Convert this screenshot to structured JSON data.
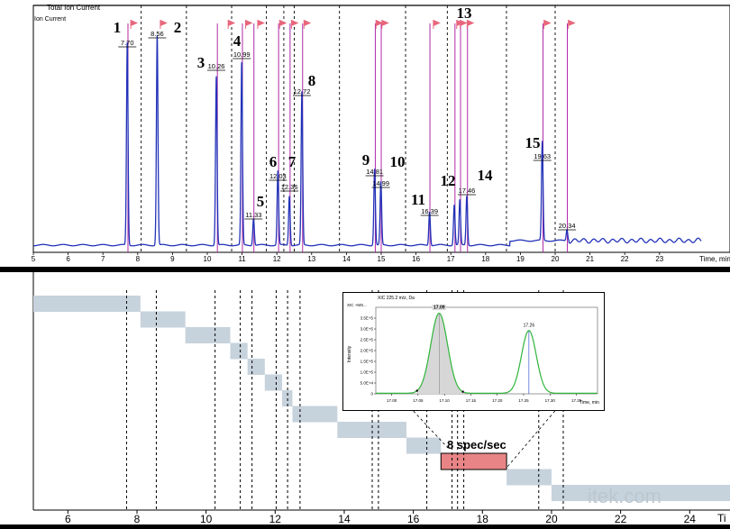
{
  "tic": {
    "title": "Total Ion Current",
    "ylabel": "Ion Current",
    "x_axis_label": "Time, min",
    "x_ticks": [
      "5",
      "6",
      "7",
      "8",
      "9",
      "10",
      "11",
      "12",
      "13",
      "14",
      "15",
      "16",
      "17",
      "18",
      "19",
      "20",
      "21",
      "22",
      "23"
    ]
  },
  "peak_labels": [
    "7.70",
    "8.56",
    "10.26",
    "10.99",
    "11.33",
    "12.03",
    "12.36",
    "12.72",
    "14.81",
    "14.99",
    "16.39",
    "17.46",
    "19.63",
    "20.34"
  ],
  "peak_numbers": [
    "1",
    "2",
    "3",
    "4",
    "5",
    "6",
    "7",
    "8",
    "9",
    "10",
    "11",
    "12",
    "13",
    "14",
    "15"
  ],
  "inset": {
    "title": "XIC 225.2 m/z, Da",
    "legend": "XIC +MS...",
    "ylabel": "Intensity",
    "xlabel": "Time, min",
    "y_ticks": [
      "0",
      "5.0E+4",
      "1.0E+5",
      "1.5E+5",
      "2.0E+5",
      "2.5E+5",
      "3.0E+5",
      "3.5E+5"
    ],
    "x_ticks": [
      "17.00",
      "17.05",
      "17.10",
      "17.15",
      "17.20",
      "17.25",
      "17.30",
      "17.35"
    ],
    "peak1_label": "17.09",
    "peak2_label": "17.26"
  },
  "segments_axis": {
    "x_ticks": [
      "6",
      "8",
      "10",
      "12",
      "14",
      "16",
      "18",
      "20",
      "22",
      "24"
    ],
    "x_axis_label_partial": "Ti"
  },
  "annotation": {
    "spec_rate": "8 spec/sec"
  },
  "watermark": "itek.com",
  "colors": {
    "trace": "#2232b8",
    "flag": "#e8667c",
    "window_line": "#b02aa8",
    "segment": "#c6d2dc",
    "highlight_segment": "#e88486",
    "inset_green": "#2fb53a",
    "inset_fill": "#d7d7d7"
  },
  "chart_data": [
    {
      "type": "line",
      "title": "Total Ion Current",
      "xlabel": "Time, min",
      "ylabel": "Ion Current",
      "xlim": [
        5,
        24.2
      ],
      "grid": false,
      "peaks": [
        {
          "x": 7.7,
          "y": 0.9,
          "number": "1",
          "label": "7.70"
        },
        {
          "x": 8.56,
          "y": 0.93,
          "number": "2",
          "label": "8.56"
        },
        {
          "x": 10.26,
          "y": 0.75,
          "number": "3",
          "label": "10.26"
        },
        {
          "x": 10.99,
          "y": 0.81,
          "number": "4",
          "label": "10.99"
        },
        {
          "x": 11.33,
          "y": 0.12,
          "number": "5",
          "label": "11.33"
        },
        {
          "x": 12.03,
          "y": 0.33,
          "number": "6",
          "label": "12.03"
        },
        {
          "x": 12.36,
          "y": 0.22,
          "number": "7",
          "label": "12.36"
        },
        {
          "x": 12.72,
          "y": 0.68,
          "number": "8",
          "label": "12.72"
        },
        {
          "x": 14.81,
          "y": 0.34,
          "number": "9",
          "label": "14.81"
        },
        {
          "x": 14.99,
          "y": 0.28,
          "number": "10",
          "label": "14.99"
        },
        {
          "x": 16.39,
          "y": 0.15,
          "number": "11",
          "label": "16.39"
        },
        {
          "x": 17.1,
          "y": 0.18,
          "number": "12",
          "label": ""
        },
        {
          "x": 17.26,
          "y": 0.2,
          "number": "13",
          "label": ""
        },
        {
          "x": 17.46,
          "y": 0.22,
          "number": "14",
          "label": "17.46"
        },
        {
          "x": 19.63,
          "y": 0.44,
          "number": "15",
          "label": "19.63"
        },
        {
          "x": 20.34,
          "y": 0.05,
          "number": "",
          "label": "20.34"
        }
      ],
      "flag_times": [
        7.8,
        8.65,
        10.6,
        11.1,
        11.45,
        12.08,
        12.42,
        12.78,
        14.85,
        15.02,
        16.5,
        17.17,
        17.27,
        17.47,
        19.68,
        20.38
      ],
      "window_line_times": [
        7.72,
        10.29,
        11.01,
        11.34,
        12.05,
        12.38,
        12.74,
        14.83,
        15.0,
        16.4,
        17.12,
        17.28,
        17.48,
        19.65,
        20.35
      ],
      "dashed_boundaries": [
        8.1,
        9.4,
        10.7,
        11.7,
        12.2,
        12.5,
        13.8,
        15.7,
        16.9,
        18.6,
        20.0
      ]
    },
    {
      "type": "bar",
      "orientation": "gantt",
      "xlim": [
        5,
        25.2
      ],
      "segments": [
        {
          "start": 5.0,
          "end": 8.1
        },
        {
          "start": 8.1,
          "end": 9.4
        },
        {
          "start": 9.4,
          "end": 10.7
        },
        {
          "start": 10.7,
          "end": 11.2
        },
        {
          "start": 11.2,
          "end": 11.7
        },
        {
          "start": 11.7,
          "end": 12.2
        },
        {
          "start": 12.2,
          "end": 12.5
        },
        {
          "start": 12.5,
          "end": 13.8
        },
        {
          "start": 13.8,
          "end": 15.8
        },
        {
          "start": 15.8,
          "end": 16.8
        },
        {
          "start": 16.8,
          "end": 18.7,
          "highlight": true
        },
        {
          "start": 18.7,
          "end": 20.0
        },
        {
          "start": 20.0,
          "end": 25.2
        }
      ],
      "dashed_lines": [
        7.7,
        8.56,
        10.26,
        10.99,
        11.33,
        12.03,
        12.36,
        12.72,
        14.81,
        14.99,
        16.39,
        17.12,
        17.28,
        17.46,
        19.63,
        20.34
      ]
    },
    {
      "type": "line",
      "title": "XIC 225.2 m/z, Da",
      "xlabel": "Time, min",
      "ylabel": "Intensity",
      "xlim": [
        16.97,
        17.39
      ],
      "ylim": [
        0,
        400000
      ],
      "peaks": [
        {
          "x": 17.09,
          "y": 370000,
          "sigma": 0.016,
          "label": "17.09",
          "shaded": true
        },
        {
          "x": 17.26,
          "y": 290000,
          "sigma": 0.014,
          "label": "17.26"
        }
      ]
    }
  ]
}
